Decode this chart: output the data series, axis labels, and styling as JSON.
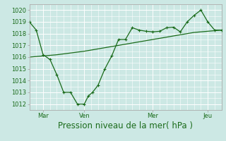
{
  "xlabel": "Pression niveau de la mer( hPa )",
  "ylim": [
    1011.5,
    1020.5
  ],
  "yticks": [
    1012,
    1013,
    1014,
    1015,
    1016,
    1017,
    1018,
    1019,
    1020
  ],
  "background_color": "#cce8e4",
  "grid_color": "#ffffff",
  "line_color": "#1a6b1a",
  "xtick_labels": [
    "Mar",
    "Ven",
    "Mer",
    "Jeu"
  ],
  "xtick_positions": [
    1,
    4,
    9,
    13
  ],
  "vline_positions": [
    1,
    4,
    9,
    13
  ],
  "line1_x": [
    0,
    0.5,
    1,
    1.5,
    2,
    2.5,
    3,
    3.5,
    4,
    4.3,
    4.6,
    5,
    5.5,
    6,
    6.5,
    7,
    7.5,
    8,
    8.5,
    9,
    9.5,
    10,
    10.5,
    11,
    11.5,
    12,
    12.5,
    13,
    13.5,
    14
  ],
  "line1_y": [
    1019.0,
    1018.3,
    1016.2,
    1015.8,
    1014.5,
    1013.0,
    1013.0,
    1012.0,
    1012.0,
    1012.7,
    1013.0,
    1013.6,
    1015.0,
    1016.1,
    1017.5,
    1017.5,
    1018.5,
    1018.3,
    1018.2,
    1018.15,
    1018.2,
    1018.5,
    1018.55,
    1018.15,
    1019.0,
    1019.55,
    1020.0,
    1019.0,
    1018.3,
    1018.3
  ],
  "line2_x": [
    0,
    2,
    4,
    6,
    8,
    10,
    12,
    14
  ],
  "line2_y": [
    1016.0,
    1016.2,
    1016.5,
    1016.9,
    1017.3,
    1017.7,
    1018.1,
    1018.3
  ],
  "xlim": [
    0,
    14
  ],
  "tick_fontsize": 6,
  "xlabel_fontsize": 8.5
}
